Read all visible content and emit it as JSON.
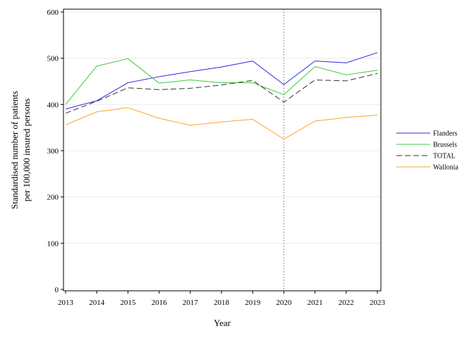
{
  "chart_data": {
    "type": "line",
    "title": "",
    "xlabel": "Year",
    "ylabel_line1": "Standardised number of patients",
    "ylabel_line2": "per 100,000 insured persons",
    "x": [
      "2013",
      "2014",
      "2015",
      "2016",
      "2017",
      "2018",
      "2019",
      "2020",
      "2021",
      "2022",
      "2023"
    ],
    "xlim": [
      2013,
      2023
    ],
    "ylim": [
      0,
      600
    ],
    "yticks": [
      0,
      100,
      200,
      300,
      400,
      500,
      600
    ],
    "grid": true,
    "legend_position": "right",
    "reference_line": {
      "x": 2020,
      "color": "#b57a7a",
      "style": "dotted"
    },
    "series": [
      {
        "name": "Flanders",
        "color": "#2a2ae0",
        "dash": "solid",
        "values": [
          390,
          408,
          447,
          460,
          471,
          481,
          494,
          443,
          494,
          490,
          512
        ]
      },
      {
        "name": "Brussels",
        "color": "#3ec83e",
        "dash": "solid",
        "values": [
          400,
          483,
          499,
          446,
          453,
          447,
          447,
          421,
          482,
          464,
          474
        ]
      },
      {
        "name": "TOTAL",
        "color": "#333333",
        "dash": "dashed",
        "values": [
          381,
          407,
          436,
          432,
          435,
          442,
          452,
          405,
          453,
          451,
          467
        ]
      },
      {
        "name": "Wallonia",
        "color": "#ffa030",
        "dash": "solid",
        "values": [
          356,
          384,
          393,
          370,
          355,
          362,
          368,
          325,
          364,
          372,
          377
        ]
      }
    ]
  }
}
